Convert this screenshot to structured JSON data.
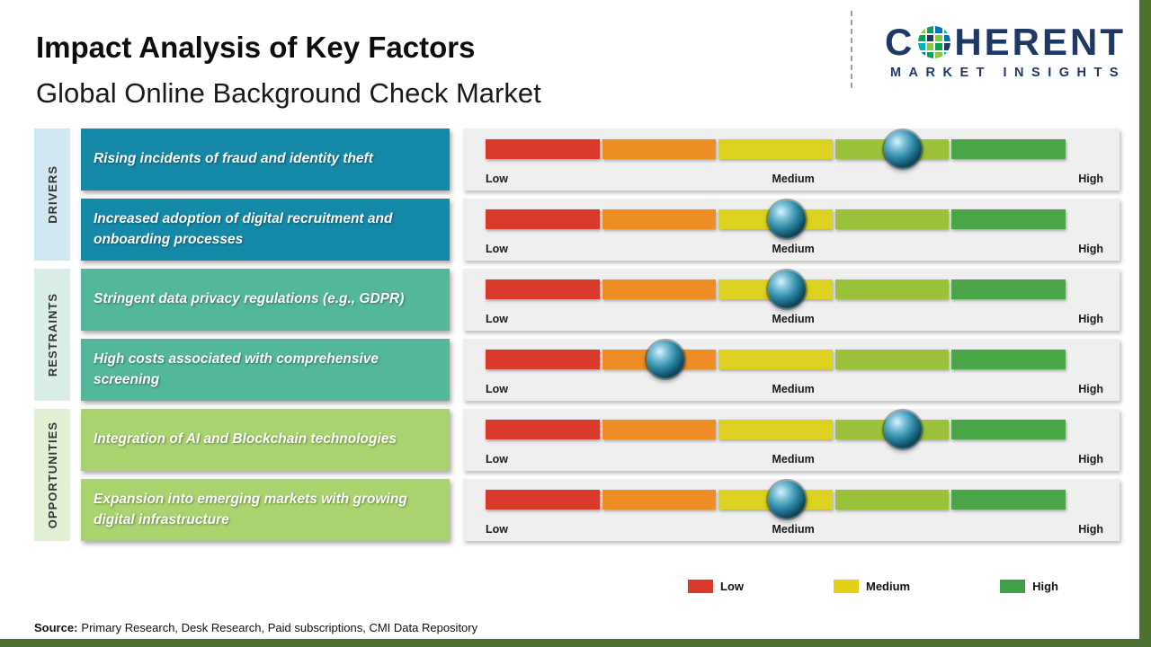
{
  "header": {
    "title": "Impact Analysis of Key Factors",
    "subtitle": "Global Online Background Check Market"
  },
  "logo": {
    "brand_prefix": "C",
    "brand_suffix": "HERENT",
    "tagline": "MARKET INSIGHTS",
    "brand_color": "#1f3864",
    "mosaic_colors": [
      "#8dc63f",
      "#00a651",
      "#0072bc",
      "#00b7bd",
      "#00a651",
      "#1f3864",
      "#8dc63f",
      "#0072bc",
      "#00b7bd",
      "#8dc63f",
      "#00a651",
      "#1f3864",
      "#0072bc",
      "#00a651",
      "#8dc63f",
      "#00b7bd"
    ]
  },
  "sidebar_categories": [
    {
      "label": "DRIVERS",
      "strip_color": "#cfe8f2",
      "box_color": "#1589a8"
    },
    {
      "label": "RESTRAINTS",
      "strip_color": "#d9eee8",
      "box_color": "#52b79b"
    },
    {
      "label": "OPPORTUNITIES",
      "strip_color": "#e2f0d3",
      "box_color": "#a9d36e"
    }
  ],
  "gauge": {
    "labels": [
      "Low",
      "Medium",
      "High"
    ],
    "segment_colors": [
      "#d93a2b",
      "#ee8d23",
      "#ddd21f",
      "#9cc23c",
      "#49a546"
    ],
    "panel_color": "#efefef",
    "marker_color": "#0e4a60"
  },
  "legend": [
    {
      "label": "Low",
      "color": "#d93a2b"
    },
    {
      "label": "Medium",
      "color": "#e3cf16"
    },
    {
      "label": "High",
      "color": "#3fa047"
    }
  ],
  "source": {
    "prefix": "Source:",
    "text": "Primary Research, Desk Research, Paid subscriptions, CMI Data Repository"
  },
  "chart_data": {
    "type": "table",
    "title": "Impact Analysis of Key Factors",
    "subtitle": "Global Online Background Check Market",
    "scale": [
      "Low",
      "Medium",
      "High"
    ],
    "scale_range": [
      0,
      1
    ],
    "rows": [
      {
        "category": "Drivers",
        "factor": "Rising incidents of fraud and identity theft",
        "impact_position": 0.72,
        "impact_label": "Medium-High"
      },
      {
        "category": "Drivers",
        "factor": "Increased adoption of digital recruitment and onboarding processes",
        "impact_position": 0.52,
        "impact_label": "Medium"
      },
      {
        "category": "Restraints",
        "factor": "Stringent data privacy regulations (e.g., GDPR)",
        "impact_position": 0.52,
        "impact_label": "Medium"
      },
      {
        "category": "Restraints",
        "factor": "High costs associated with comprehensive screening",
        "impact_position": 0.31,
        "impact_label": "Low-Medium"
      },
      {
        "category": "Opportunities",
        "factor": "Integration of AI and Blockchain technologies",
        "impact_position": 0.72,
        "impact_label": "Medium-High"
      },
      {
        "category": "Opportunities",
        "factor": "Expansion into emerging markets with growing digital infrastructure",
        "impact_position": 0.52,
        "impact_label": "Medium"
      }
    ]
  }
}
